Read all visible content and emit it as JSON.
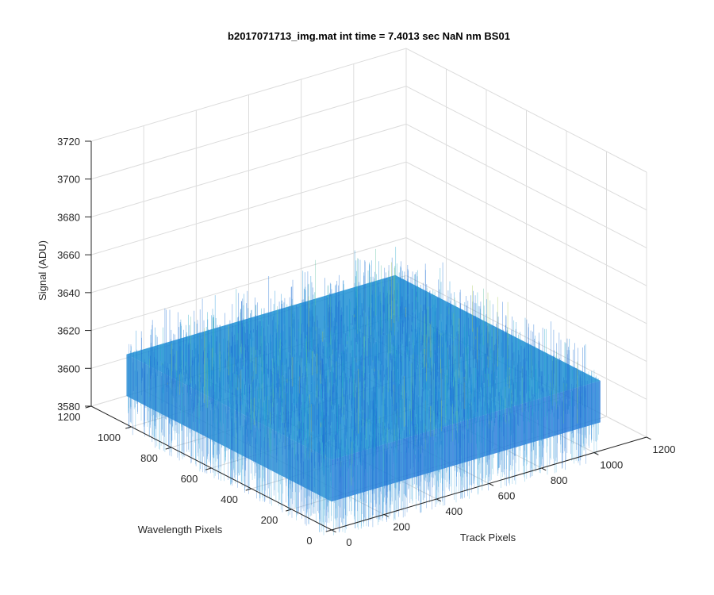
{
  "chart_data": {
    "type": "surface3d",
    "title": "b2017071713_img.mat int time = 7.4013 sec  NaN nm BS01",
    "xlabel": "Track Pixels",
    "ylabel": "Wavelength Pixels",
    "zlabel": "Signal (ADU)",
    "xlim": [
      0,
      1200
    ],
    "ylim": [
      0,
      1200
    ],
    "zlim": [
      3580,
      3720
    ],
    "xticks": [
      "0",
      "200",
      "400",
      "600",
      "800",
      "1000",
      "1200"
    ],
    "yticks": [
      "0",
      "200",
      "400",
      "600",
      "800",
      "1000",
      "1200"
    ],
    "zticks": [
      "3580",
      "3600",
      "3620",
      "3640",
      "3660",
      "3680",
      "3700",
      "3720"
    ],
    "surface": {
      "x_range": [
        0,
        1024
      ],
      "y_range": [
        0,
        1024
      ],
      "mean_signal": 3617,
      "noise_range": [
        3595,
        3650
      ],
      "colormap": [
        "#1f6fd6",
        "#1c8fd8",
        "#26a7c9",
        "#5bbf9f",
        "#a9c85b"
      ]
    },
    "grid": true,
    "view": "3d"
  }
}
